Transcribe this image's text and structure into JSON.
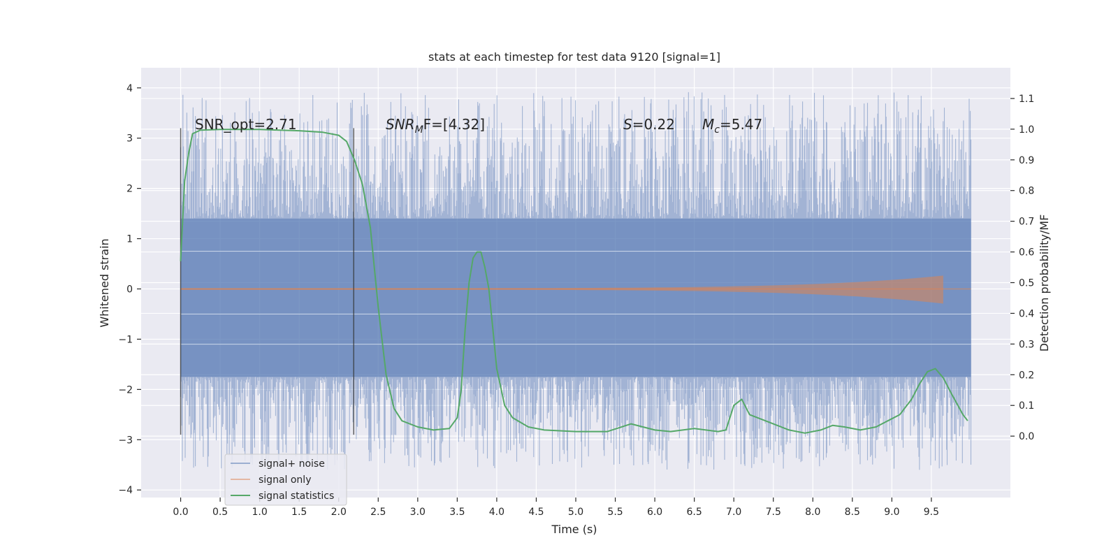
{
  "chart_data": {
    "type": "line",
    "title": "stats at each timestep for test data 9120 [signal=1]",
    "xlabel": "Time (s)",
    "ylabel_left": "Whitened strain",
    "ylabel_right": "Detection probability/MF",
    "xlim": [
      -0.5,
      10.5
    ],
    "ylim_left": [
      -4.15,
      4.4
    ],
    "ylim_right": [
      -0.2,
      1.2
    ],
    "x_ticks": [
      "0.0",
      "0.5",
      "1.0",
      "1.5",
      "2.0",
      "2.5",
      "3.0",
      "3.5",
      "4.0",
      "4.5",
      "5.0",
      "5.5",
      "6.0",
      "6.5",
      "7.0",
      "7.5",
      "8.0",
      "8.5",
      "9.0",
      "9.5"
    ],
    "y_ticks_left": [
      "−4",
      "−3",
      "−2",
      "−1",
      "0",
      "1",
      "2",
      "3",
      "4"
    ],
    "y_ticks_right": [
      "0.0",
      "0.1",
      "0.2",
      "0.3",
      "0.4",
      "0.5",
      "0.6",
      "0.7",
      "0.8",
      "0.9",
      "1.0",
      "1.1"
    ],
    "grid": true,
    "legend_position": "lower-left",
    "legend": [
      "signal+ noise",
      "signal only",
      "signal statistics"
    ],
    "series_colors": {
      "signal+ noise": "#4c72b0",
      "signal only": "#dd8452",
      "signal statistics": "#55a868"
    },
    "annotations": {
      "snr_opt": "SNR_opt=2.71",
      "snr_mf_prefix": "SNR",
      "snr_mf_sub": "M",
      "snr_mf_suffix": "F=[4.32]",
      "s_label": "S",
      "s_value": "=0.22",
      "mc_label": "M",
      "mc_sub": "c",
      "mc_value": "=5.47"
    },
    "markers": [
      {
        "x": 0.0,
        "y_range": [
          -2.9,
          3.2
        ]
      },
      {
        "x": 2.19,
        "y_range": [
          -2.9,
          3.2
        ]
      }
    ],
    "noise_band": {
      "x_range": [
        0.0,
        10.0
      ],
      "dense_band": [
        -1.75,
        1.4
      ],
      "spike_extremes": [
        -3.7,
        4.05
      ]
    },
    "signal_only": {
      "x_range": [
        0.0,
        9.65
      ],
      "peak_amplitude": 0.25
    },
    "signal_statistics": {
      "x": [
        0.0,
        0.05,
        0.1,
        0.15,
        0.25,
        0.5,
        1.0,
        1.5,
        1.8,
        2.0,
        2.1,
        2.2,
        2.3,
        2.4,
        2.5,
        2.6,
        2.7,
        2.8,
        3.0,
        3.2,
        3.4,
        3.5,
        3.55,
        3.6,
        3.65,
        3.7,
        3.75,
        3.8,
        3.85,
        3.9,
        3.95,
        4.0,
        4.1,
        4.2,
        4.4,
        4.6,
        5.0,
        5.4,
        5.7,
        6.0,
        6.2,
        6.5,
        6.8,
        6.9,
        7.0,
        7.1,
        7.2,
        7.4,
        7.7,
        7.9,
        8.1,
        8.25,
        8.4,
        8.6,
        8.8,
        9.1,
        9.25,
        9.35,
        9.45,
        9.55,
        9.65,
        9.75,
        9.9,
        9.96
      ],
      "y": [
        0.57,
        0.83,
        0.92,
        0.985,
        0.997,
        0.999,
        0.999,
        0.995,
        0.99,
        0.98,
        0.96,
        0.9,
        0.82,
        0.68,
        0.42,
        0.2,
        0.09,
        0.05,
        0.03,
        0.02,
        0.025,
        0.06,
        0.15,
        0.35,
        0.5,
        0.58,
        0.6,
        0.6,
        0.55,
        0.48,
        0.35,
        0.22,
        0.1,
        0.06,
        0.03,
        0.02,
        0.015,
        0.015,
        0.04,
        0.02,
        0.015,
        0.025,
        0.015,
        0.02,
        0.1,
        0.12,
        0.07,
        0.05,
        0.02,
        0.01,
        0.02,
        0.035,
        0.03,
        0.02,
        0.03,
        0.07,
        0.12,
        0.17,
        0.21,
        0.22,
        0.19,
        0.14,
        0.07,
        0.05
      ]
    }
  }
}
